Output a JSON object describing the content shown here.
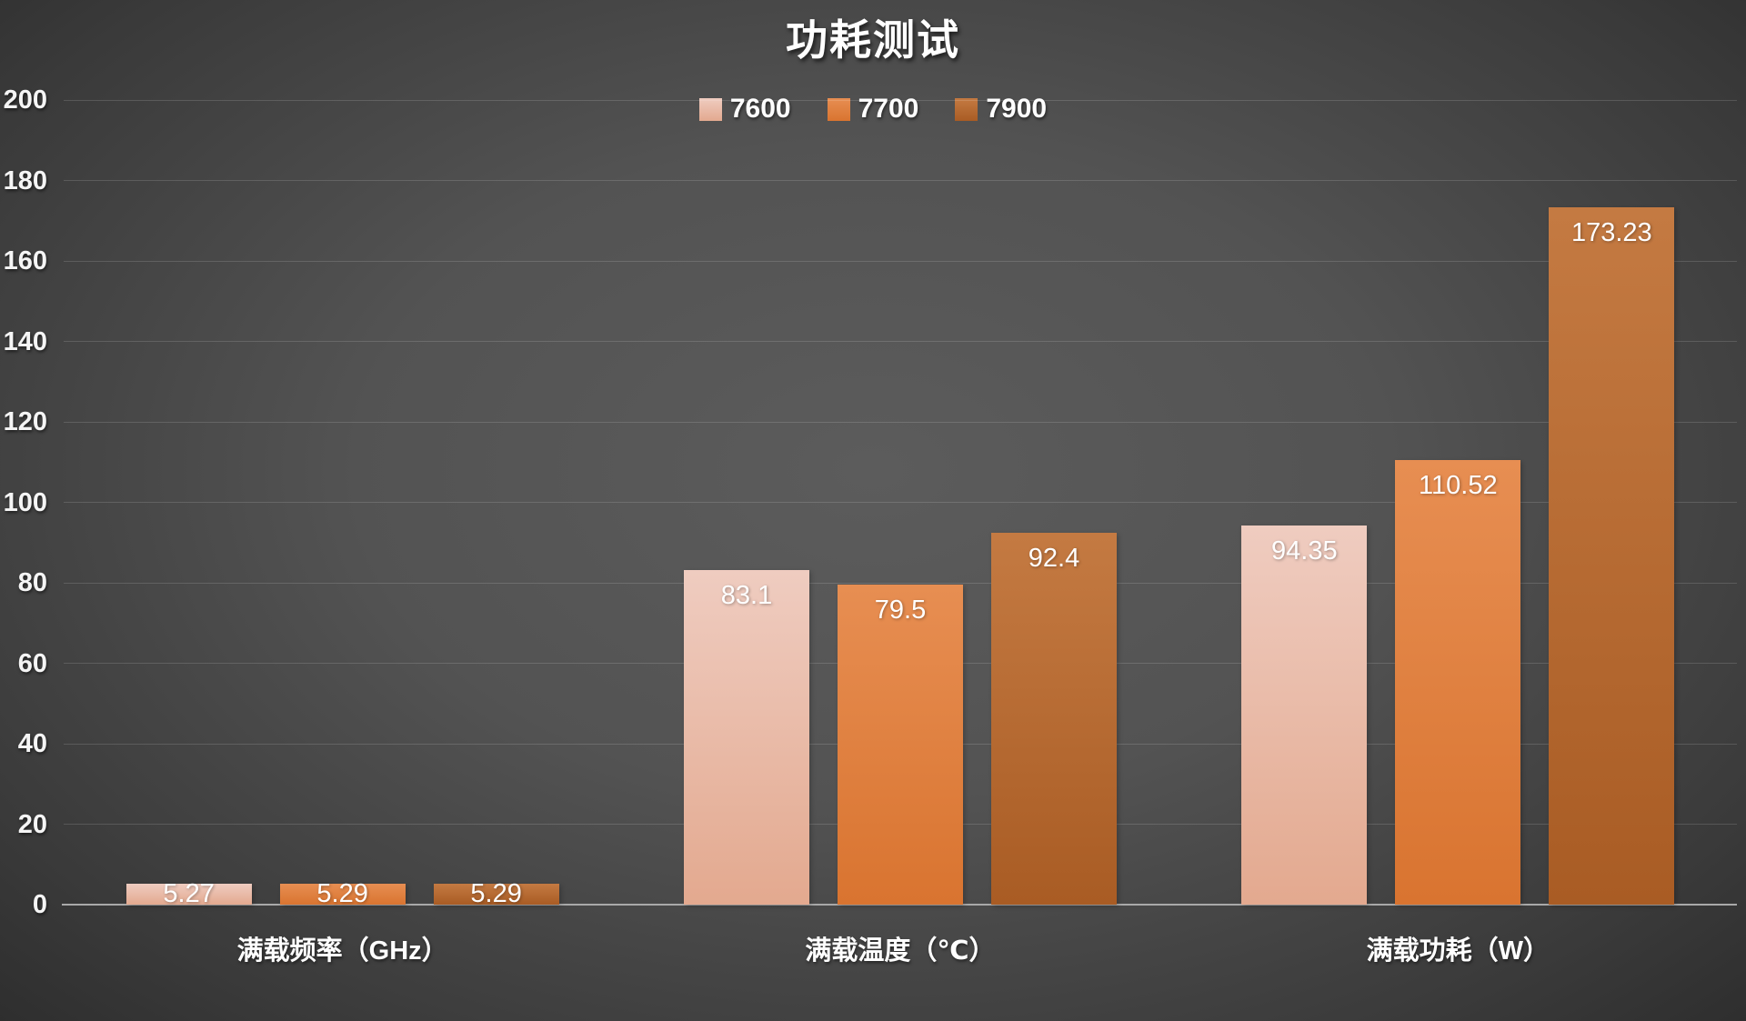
{
  "title": "功耗测试",
  "chart_data": {
    "type": "bar",
    "title": "功耗测试",
    "categories": [
      "满载频率（GHz）",
      "满载温度（℃）",
      "满载功耗（W）"
    ],
    "series": [
      {
        "name": "7600",
        "values": [
          5.27,
          83.1,
          94.35
        ],
        "color_top": "#efccc0",
        "color_bottom": "#e3a98f"
      },
      {
        "name": "7700",
        "values": [
          5.29,
          79.5,
          110.52
        ],
        "color_top": "#e78e52",
        "color_bottom": "#d97430"
      },
      {
        "name": "7900",
        "values": [
          5.29,
          92.4,
          173.23
        ],
        "color_top": "#c47a42",
        "color_bottom": "#a95c24"
      }
    ],
    "ylim": [
      0,
      200
    ],
    "y_tick_step": 20,
    "y_tick_labels": [
      "0",
      "20",
      "40",
      "60",
      "80",
      "100",
      "120",
      "140",
      "160",
      "180",
      "200"
    ],
    "legend_position": "top-center",
    "grid": "horizontal",
    "data_label_position": "inside-end"
  },
  "colors": {
    "background_center": "#595959",
    "background_edge": "#262626",
    "gridline": "rgba(255,255,255,0.14)",
    "axis_line": "#a9a9a9",
    "text": "#ffffff"
  }
}
